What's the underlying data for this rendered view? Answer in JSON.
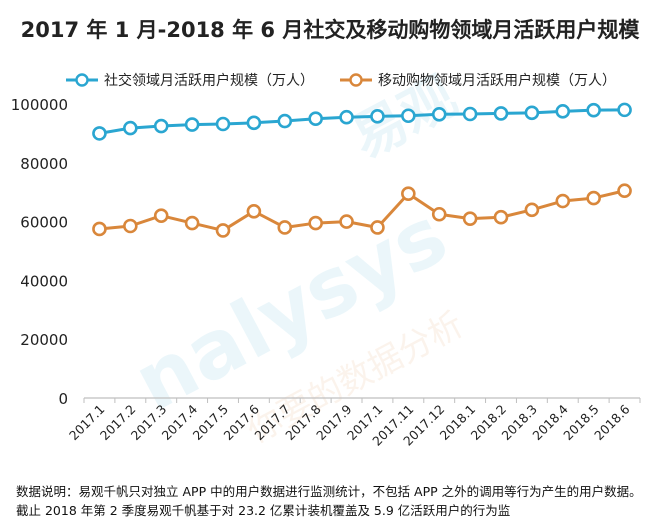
{
  "chart_data": {
    "type": "line",
    "title": "2017 年 1 月-2018 年 6 月社交及移动购物领域月活跃用户规模",
    "categories": [
      "2017.1",
      "2017.2",
      "2017.3",
      "2017.4",
      "2017.5",
      "2017.6",
      "2017.7",
      "2017.8",
      "2017.9",
      "2017.10",
      "2017.11",
      "2017.12",
      "2018.1",
      "2018.2",
      "2018.3",
      "2018.4",
      "2018.5",
      "2018.6"
    ],
    "category_labels": [
      "2017.1",
      "2017.2",
      "2017.3",
      "2017.4",
      "2017.5",
      "2017.6",
      "2017.7",
      "2017.8",
      "2017.9",
      "2017.1",
      "2017.11",
      "2017.12",
      "2018.1",
      "2018.2",
      "2018.3",
      "2018.4",
      "2018.5",
      "2018.6"
    ],
    "series": [
      {
        "name": "社交领域月活跃用户规模（万人）",
        "color": "#2aa6d1",
        "values": [
          90000,
          91800,
          92500,
          93000,
          93200,
          93600,
          94200,
          95000,
          95500,
          95800,
          96000,
          96500,
          96600,
          96800,
          97000,
          97500,
          97900,
          98000
        ]
      },
      {
        "name": "移动购物领域月活跃用户规模（万人）",
        "color": "#d9873b",
        "values": [
          57500,
          58500,
          62000,
          59500,
          57000,
          63500,
          58000,
          59500,
          60000,
          58000,
          69500,
          62500,
          61000,
          61500,
          64000,
          67000,
          68000,
          70500
        ]
      }
    ],
    "ylim": [
      0,
      100000
    ],
    "yticks": [
      0,
      20000,
      40000,
      60000,
      80000,
      100000
    ],
    "grid": false,
    "legend": "top"
  },
  "watermark": {
    "brand": "易观",
    "latin": "nalysys",
    "cn": "你要的数据分析"
  },
  "note": {
    "text": "数据说明：易观千帆只对独立 APP 中的用户数据进行监测统计，不包括 APP 之外的调用等行为产生的用户数据。截止 2018 年第 2 季度易观千帆基于对 23.2 亿累计装机覆盖及 5.9 亿活跃用户的行为监"
  }
}
